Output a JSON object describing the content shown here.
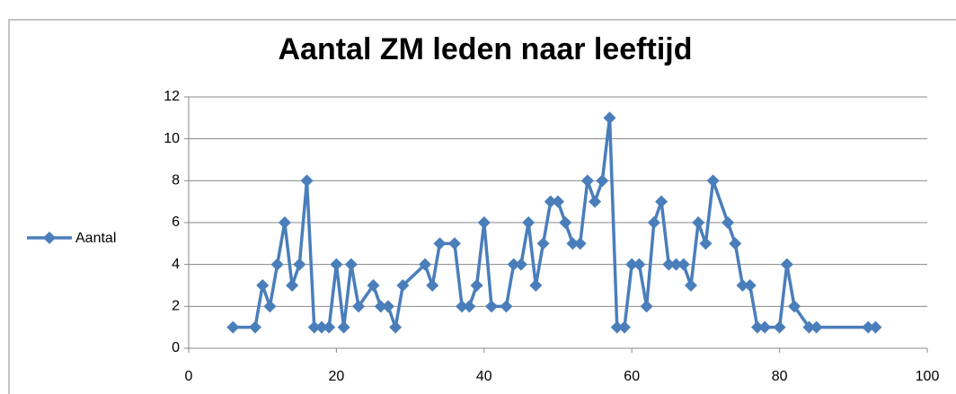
{
  "chart_data": {
    "type": "line",
    "title": "Aantal ZM leden naar leeftijd",
    "x": [
      6,
      9,
      10,
      11,
      12,
      13,
      14,
      15,
      16,
      17,
      18,
      19,
      20,
      21,
      22,
      23,
      25,
      26,
      27,
      28,
      29,
      32,
      33,
      34,
      36,
      37,
      38,
      39,
      40,
      41,
      43,
      44,
      45,
      46,
      47,
      48,
      49,
      50,
      51,
      52,
      53,
      54,
      55,
      56,
      57,
      58,
      59,
      60,
      61,
      62,
      63,
      64,
      65,
      66,
      67,
      68,
      69,
      70,
      71,
      73,
      74,
      75,
      76,
      77,
      78,
      80,
      81,
      82,
      84,
      85,
      92,
      93
    ],
    "series": [
      {
        "name": "Aantal",
        "color": "#4a7ebb",
        "values": [
          1,
          1,
          3,
          2,
          4,
          6,
          3,
          4,
          8,
          1,
          1,
          1,
          4,
          1,
          4,
          2,
          3,
          2,
          2,
          1,
          3,
          4,
          3,
          5,
          5,
          2,
          2,
          3,
          6,
          2,
          2,
          4,
          4,
          6,
          3,
          5,
          7,
          7,
          6,
          5,
          5,
          8,
          7,
          8,
          11,
          1,
          1,
          4,
          4,
          2,
          6,
          7,
          4,
          4,
          4,
          3,
          6,
          5,
          8,
          6,
          5,
          3,
          3,
          1,
          1,
          1,
          4,
          2,
          1,
          1,
          1,
          1
        ]
      }
    ],
    "xlim": [
      0,
      100
    ],
    "xticks": [
      0,
      20,
      40,
      60,
      80,
      100
    ],
    "ylim": [
      0,
      12
    ],
    "yticks": [
      0,
      2,
      4,
      6,
      8,
      10,
      12
    ],
    "grid": true,
    "legend": "left"
  }
}
